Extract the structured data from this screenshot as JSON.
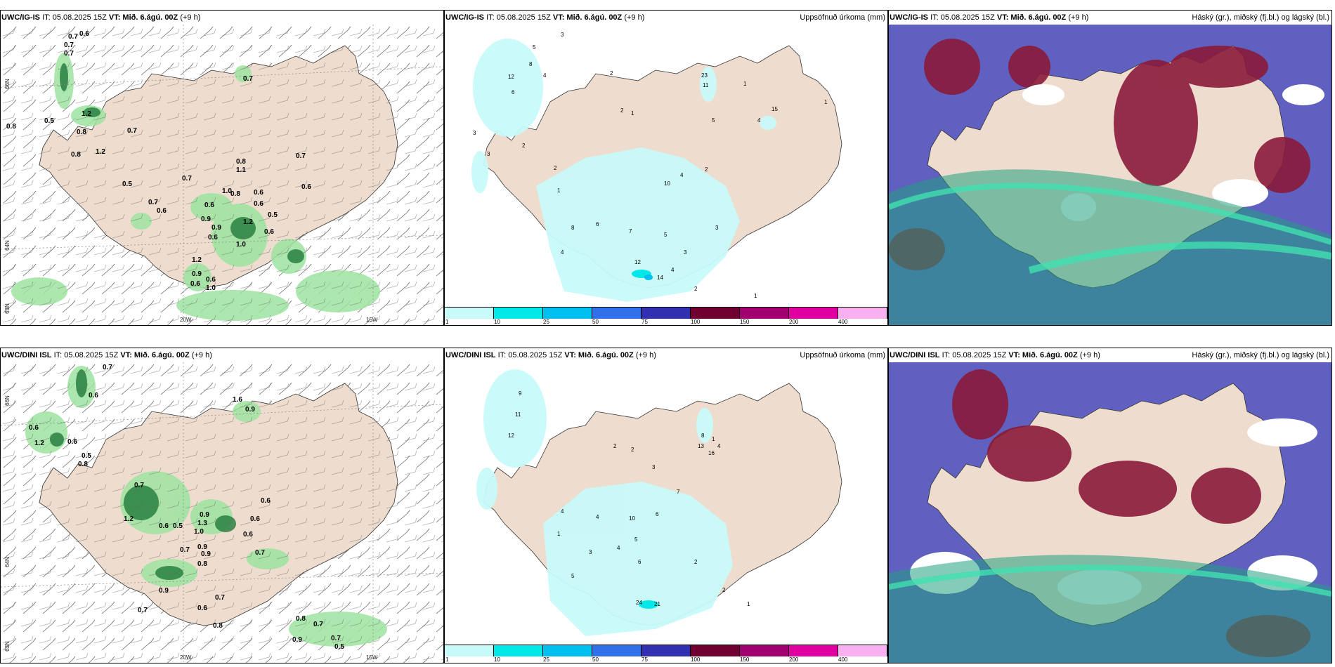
{
  "colors": {
    "land": "#eeddcf",
    "precip": [
      "#c8fafa",
      "#00e8e8",
      "#00c0f0",
      "#3070e8",
      "#3030b0",
      "#700030",
      "#a00070",
      "#e000a0",
      "#f8b0f0"
    ],
    "sea_cloud": "#6060c0",
    "high_cloud": "#8a1a3a",
    "mid_cloud": "#20a080"
  },
  "rows": [
    {
      "model_name": "UWC/IG-IS",
      "init_time": "IT: 05.08.2025 15Z",
      "valid_label": "VT:",
      "valid_time": "Mið. 6.ágú. 00Z",
      "lead": "(+9 h)"
    },
    {
      "model_name": "UWC/DINI ISL",
      "init_time": "IT: 05.08.2025 15Z",
      "valid_label": "VT:",
      "valid_time": "Mið. 6.ágú. 00Z",
      "lead": "(+9 h)"
    }
  ],
  "precip_title": "Uppsöfnuð úrkoma (mm)",
  "cloud_title": "Háský (gr.), miðský (fj.bl.) og lágský (bl.)",
  "colorbar_labels": [
    "1",
    "10",
    "25",
    "50",
    "75",
    "100",
    "150",
    "200",
    "400"
  ],
  "axis_labels": {
    "lat66": "66N",
    "lat64": "64N",
    "lat63": "63N",
    "lon20": "20W",
    "lon15": "15W"
  },
  "wind_values_top": [
    "0.7",
    "0.6",
    "0.7",
    "0.7",
    "0.7",
    "0.8",
    "0.5",
    "1.2",
    "0.8",
    "0.7",
    "1.2",
    "0.8",
    "0.7",
    "0.5",
    "0.7",
    "0.7",
    "0.6",
    "0.6",
    "0.9",
    "0.9",
    "0.6",
    "1.0",
    "0.8",
    "0.6",
    "0.8",
    "1.1",
    "0.6",
    "1.2",
    "1.0",
    "0.5",
    "0.6",
    "0.6",
    "1.2",
    "0.9",
    "0.6",
    "1.0",
    "0.6"
  ],
  "wind_values_bottom": [
    "0.7",
    "0.6",
    "0.6",
    "1.2",
    "0.6",
    "0.5",
    "0.8",
    "0.7",
    "1.2",
    "0.5",
    "0.6",
    "0.7",
    "0.9",
    "0.6",
    "0.9",
    "1.3",
    "0.6",
    "0.7",
    "0.9",
    "1.0",
    "0.8",
    "0.9",
    "0.7",
    "0.8",
    "0.7",
    "0.6",
    "0.8",
    "0.7",
    "0.9",
    "0.7",
    "1.6",
    "0.9",
    "0.6",
    "0.5"
  ],
  "precip_values_top": [
    "5",
    "3",
    "12",
    "6",
    "8",
    "4",
    "2",
    "3",
    "2",
    "23",
    "11",
    "1",
    "2",
    "1",
    "5",
    "15",
    "1",
    "4",
    "2",
    "3",
    "1",
    "10",
    "4",
    "2",
    "7",
    "6",
    "8",
    "5",
    "3",
    "4",
    "3",
    "12",
    "4",
    "14",
    "2",
    "1"
  ],
  "precip_values_bottom": [
    "9",
    "11",
    "12",
    "8",
    "4",
    "2",
    "13",
    "16",
    "1",
    "4",
    "2",
    "3",
    "1",
    "4",
    "10",
    "6",
    "7",
    "5",
    "4",
    "3",
    "6",
    "2",
    "5",
    "24",
    "21",
    "2",
    "1"
  ]
}
